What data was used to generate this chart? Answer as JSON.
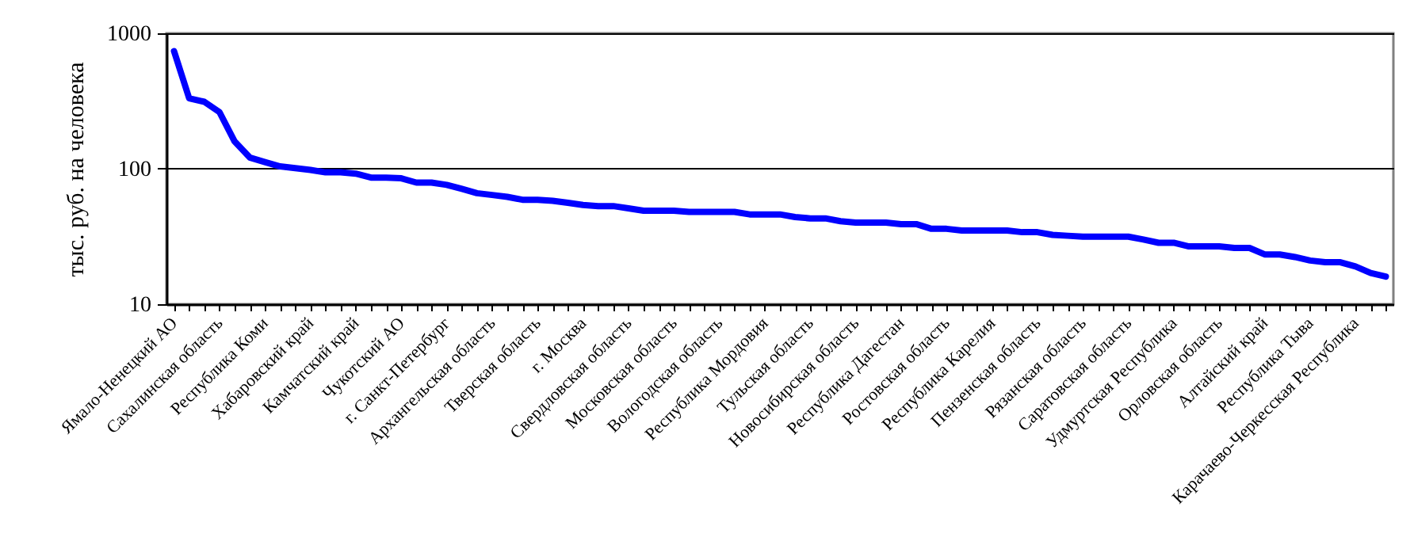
{
  "chart_data": {
    "type": "line",
    "ylabel": "тыс. руб. на человека",
    "log": true,
    "ylim": [
      10,
      1000
    ],
    "yticks": [
      10,
      100,
      1000
    ],
    "grid": "y",
    "line_style": "solid",
    "marker": "none",
    "categories": [
      "Ямало-Ненецкий АО",
      null,
      null,
      "Сахалинская область",
      null,
      null,
      "Республика Коми",
      null,
      null,
      "Хабаровский край",
      null,
      null,
      "Камчатский край",
      null,
      null,
      "Чукотский АО",
      null,
      null,
      "г. Санкт-Петербург",
      null,
      null,
      "Архангельская область",
      null,
      null,
      "Тверская область",
      null,
      null,
      "г. Москва",
      null,
      null,
      "Свердловская область",
      null,
      null,
      "Московская область",
      null,
      null,
      "Вологодская область",
      null,
      null,
      "Республика Мордовия",
      null,
      null,
      "Тульская область",
      null,
      null,
      "Новосибирская область",
      null,
      null,
      "Республика Дагестан",
      null,
      null,
      "Ростовская область",
      null,
      null,
      "Республика Карелия",
      null,
      null,
      "Пензенская область",
      null,
      null,
      "Рязанская область",
      null,
      null,
      "Саратовская область",
      null,
      null,
      "Удмуртская Республика",
      null,
      null,
      "Орловская область",
      null,
      null,
      "Алтайский край",
      null,
      null,
      "Республика Тыва",
      null,
      null,
      "Карачаево-Черкесская Республика",
      null,
      null
    ],
    "series": [
      {
        "color": "#0000ff",
        "values": [
          738,
          331,
          312,
          262,
          159,
          121,
          112,
          104,
          101,
          98,
          94,
          94,
          92,
          86,
          86,
          85,
          79,
          79,
          76,
          71,
          66,
          64,
          62,
          59,
          59,
          58,
          56,
          54,
          53,
          53,
          51,
          49,
          49,
          49,
          48,
          48,
          48,
          48,
          46,
          46,
          46,
          44,
          43,
          43,
          41,
          40,
          40,
          40,
          39,
          39,
          36,
          36,
          35,
          35,
          35,
          35,
          34,
          34,
          32.5,
          32,
          31.5,
          31.5,
          31.5,
          31.5,
          30,
          28.4,
          28.4,
          26.7,
          26.7,
          26.7,
          26,
          26,
          23.3,
          23.3,
          22.3,
          21,
          20.4,
          20.4,
          19,
          17,
          16
        ]
      }
    ]
  }
}
